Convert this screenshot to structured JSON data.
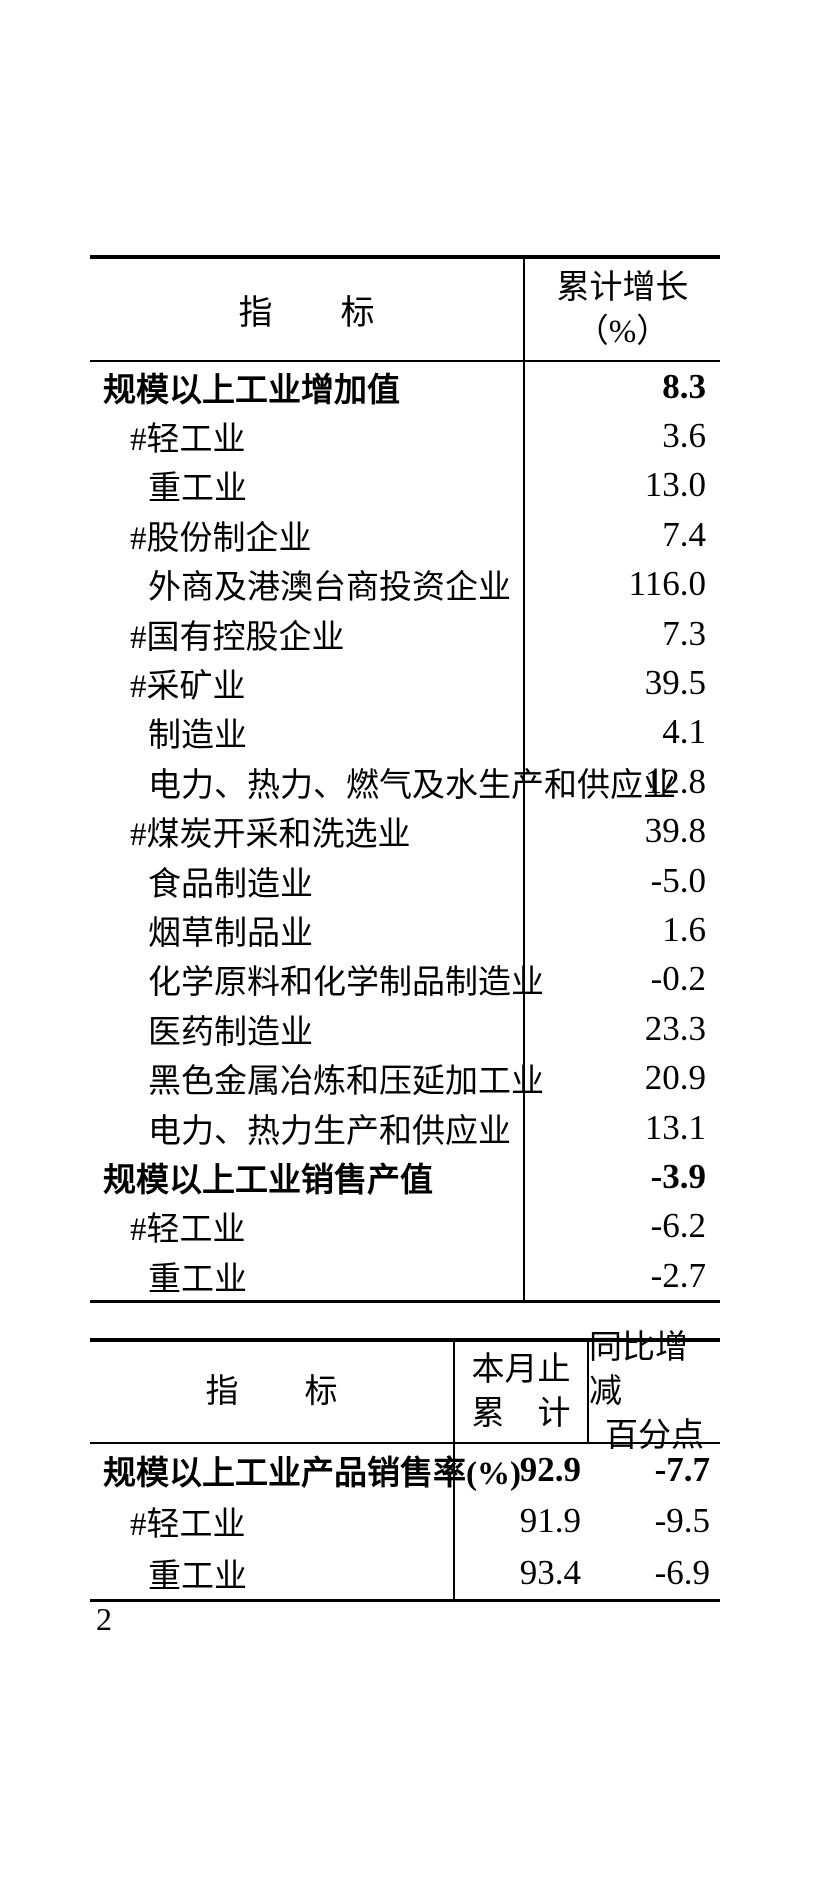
{
  "page": {
    "number": "2"
  },
  "table1": {
    "header": {
      "indicator": "指　　标",
      "value_line1": "累计增长",
      "value_line2": "（%）"
    },
    "rows": [
      {
        "label": "规模以上工业增加值",
        "value": "8.3"
      },
      {
        "label": "#轻工业",
        "value": "3.6"
      },
      {
        "label": "重工业",
        "value": "13.0"
      },
      {
        "label": "#股份制企业",
        "value": "7.4"
      },
      {
        "label": "外商及港澳台商投资企业",
        "value": "116.0"
      },
      {
        "label": "#国有控股企业",
        "value": "7.3"
      },
      {
        "label": "#采矿业",
        "value": "39.5"
      },
      {
        "label": "制造业",
        "value": "4.1"
      },
      {
        "label": "电力、热力、燃气及水生产和供应业",
        "value": "12.8"
      },
      {
        "label": "#煤炭开采和洗选业",
        "value": "39.8"
      },
      {
        "label": "食品制造业",
        "value": "-5.0"
      },
      {
        "label": "烟草制品业",
        "value": "1.6"
      },
      {
        "label": "化学原料和化学制品制造业",
        "value": "-0.2"
      },
      {
        "label": "医药制造业",
        "value": "23.3"
      },
      {
        "label": "黑色金属冶炼和压延加工业",
        "value": "20.9"
      },
      {
        "label": "电力、热力生产和供应业",
        "value": "13.1"
      },
      {
        "label": "规模以上工业销售产值",
        "value": "-3.9"
      },
      {
        "label": "#轻工业",
        "value": "-6.2"
      },
      {
        "label": "重工业",
        "value": "-2.7"
      }
    ]
  },
  "table2": {
    "header": {
      "indicator": "指　　标",
      "col2_line1": "本月止",
      "col2_line2": "累　计",
      "col3_line1": "同比增减",
      "col3_line2": "百分点"
    },
    "rows": [
      {
        "label": "规模以上工业产品销售率(%)",
        "value1": "92.9",
        "value2": "-7.7"
      },
      {
        "label": "#轻工业",
        "value1": "91.9",
        "value2": "-9.5"
      },
      {
        "label": "重工业",
        "value1": "93.4",
        "value2": "-6.9"
      }
    ]
  }
}
